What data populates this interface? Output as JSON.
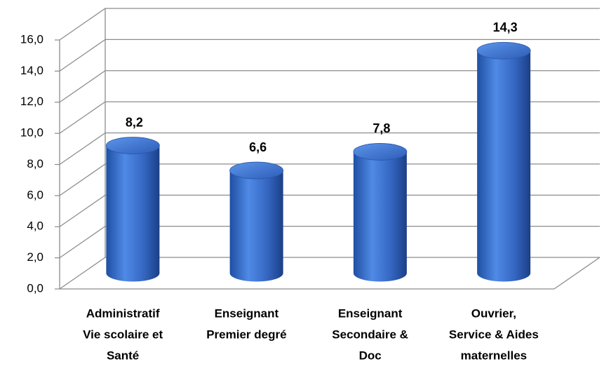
{
  "chart_data": {
    "type": "bar3d-cylinder",
    "categories": [
      [
        "Administratif",
        "Vie scolaire et",
        "Santé"
      ],
      [
        "Enseignant",
        "Premier degré"
      ],
      [
        "Enseignant",
        "Secondaire &",
        "Doc"
      ],
      [
        "Ouvrier,",
        "Service & Aides",
        "maternelles"
      ]
    ],
    "values": [
      8.2,
      6.6,
      7.8,
      14.3
    ],
    "value_labels": [
      "8,2",
      "6,6",
      "7,8",
      "14,3"
    ],
    "color": "#3a6fc9",
    "ylim": [
      0,
      16
    ],
    "yticks": [
      {
        "value": 0,
        "label": "0,0"
      },
      {
        "value": 2,
        "label": "2,0"
      },
      {
        "value": 4,
        "label": "4,0"
      },
      {
        "value": 6,
        "label": "6,0"
      },
      {
        "value": 8,
        "label": "8,0"
      },
      {
        "value": 10,
        "label": "10,0"
      },
      {
        "value": 12,
        "label": "12,0"
      },
      {
        "value": 14,
        "label": "14,0"
      },
      {
        "value": 16,
        "label": "16,0"
      }
    ],
    "grid": true
  }
}
